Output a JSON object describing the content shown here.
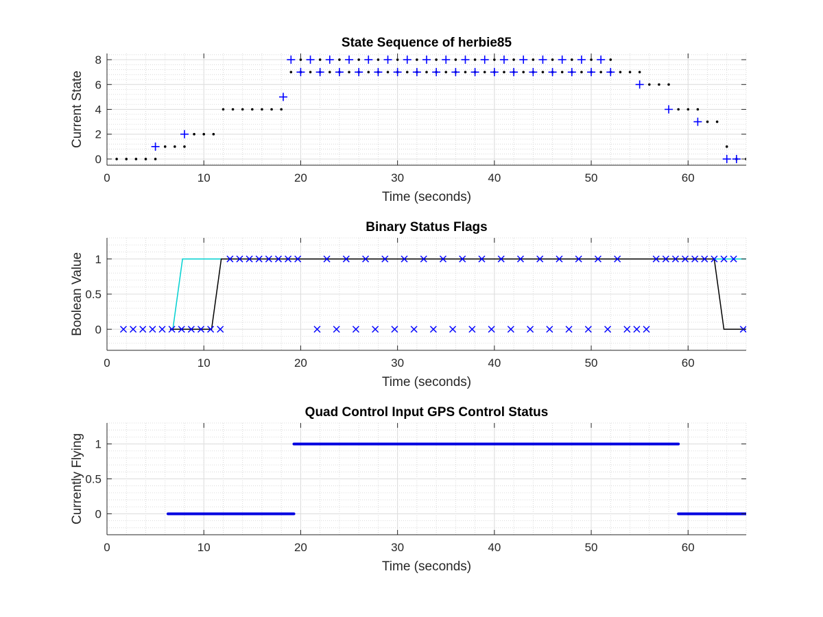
{
  "chart_data": [
    {
      "type": "scatter",
      "title": "State Sequence of herbie85",
      "xlabel": "Time (seconds)",
      "ylabel": "Current State",
      "xlim": [
        0,
        66
      ],
      "ylim": [
        -0.5,
        8.5
      ],
      "xticks": [
        0,
        10,
        20,
        30,
        40,
        50,
        60
      ],
      "yticks": [
        0,
        2,
        4,
        6,
        8
      ],
      "grid": true,
      "minor_grid": true,
      "series": [
        {
          "marker": "dot",
          "color": "#000000",
          "points": [
            [
              1,
              0
            ],
            [
              2,
              0
            ],
            [
              3,
              0
            ],
            [
              4,
              0
            ],
            [
              5,
              0
            ],
            [
              6,
              1
            ],
            [
              7,
              1
            ],
            [
              8,
              1
            ],
            [
              9,
              2
            ],
            [
              10,
              2
            ],
            [
              11,
              2
            ],
            [
              12,
              4
            ],
            [
              13,
              4
            ],
            [
              14,
              4
            ],
            [
              15,
              4
            ],
            [
              16,
              4
            ],
            [
              17,
              4
            ],
            [
              18,
              4
            ],
            [
              19,
              7
            ],
            [
              20,
              7
            ],
            [
              21,
              7
            ],
            [
              22,
              7
            ],
            [
              23,
              7
            ],
            [
              24,
              7
            ],
            [
              25,
              7
            ],
            [
              26,
              7
            ],
            [
              27,
              7
            ],
            [
              28,
              7
            ],
            [
              29,
              7
            ],
            [
              30,
              7
            ],
            [
              31,
              7
            ],
            [
              32,
              7
            ],
            [
              33,
              7
            ],
            [
              34,
              7
            ],
            [
              35,
              7
            ],
            [
              36,
              7
            ],
            [
              37,
              7
            ],
            [
              38,
              7
            ],
            [
              39,
              7
            ],
            [
              40,
              7
            ],
            [
              41,
              7
            ],
            [
              42,
              7
            ],
            [
              43,
              7
            ],
            [
              44,
              7
            ],
            [
              45,
              7
            ],
            [
              46,
              7
            ],
            [
              47,
              7
            ],
            [
              48,
              7
            ],
            [
              49,
              7
            ],
            [
              50,
              7
            ],
            [
              51,
              7
            ],
            [
              52,
              7
            ],
            [
              53,
              7
            ],
            [
              54,
              7
            ],
            [
              55,
              7
            ],
            [
              56,
              6
            ],
            [
              57,
              6
            ],
            [
              58,
              6
            ],
            [
              59,
              4
            ],
            [
              60,
              4
            ],
            [
              61,
              4
            ],
            [
              62,
              3
            ],
            [
              63,
              3
            ],
            [
              64,
              1
            ],
            [
              65,
              0
            ],
            [
              66,
              0
            ],
            [
              20,
              8
            ],
            [
              22,
              8
            ],
            [
              24,
              8
            ],
            [
              26,
              8
            ],
            [
              28,
              8
            ],
            [
              30,
              8
            ],
            [
              32,
              8
            ],
            [
              34,
              8
            ],
            [
              36,
              8
            ],
            [
              38,
              8
            ],
            [
              40,
              8
            ],
            [
              42,
              8
            ],
            [
              44,
              8
            ],
            [
              46,
              8
            ],
            [
              48,
              8
            ],
            [
              50,
              8
            ],
            [
              52,
              8
            ]
          ]
        },
        {
          "marker": "plus",
          "color": "#0000ff",
          "points": [
            [
              5,
              1
            ],
            [
              8,
              2
            ],
            [
              18.2,
              5
            ],
            [
              19,
              8
            ],
            [
              21,
              8
            ],
            [
              23,
              8
            ],
            [
              25,
              8
            ],
            [
              27,
              8
            ],
            [
              29,
              8
            ],
            [
              31,
              8
            ],
            [
              33,
              8
            ],
            [
              35,
              8
            ],
            [
              37,
              8
            ],
            [
              39,
              8
            ],
            [
              41,
              8
            ],
            [
              43,
              8
            ],
            [
              45,
              8
            ],
            [
              47,
              8
            ],
            [
              49,
              8
            ],
            [
              51,
              8
            ],
            [
              20,
              7
            ],
            [
              22,
              7
            ],
            [
              24,
              7
            ],
            [
              26,
              7
            ],
            [
              28,
              7
            ],
            [
              30,
              7
            ],
            [
              32,
              7
            ],
            [
              34,
              7
            ],
            [
              36,
              7
            ],
            [
              38,
              7
            ],
            [
              40,
              7
            ],
            [
              42,
              7
            ],
            [
              44,
              7
            ],
            [
              46,
              7
            ],
            [
              48,
              7
            ],
            [
              50,
              7
            ],
            [
              52,
              7
            ],
            [
              55,
              6
            ],
            [
              58,
              4
            ],
            [
              61,
              3
            ],
            [
              64,
              0
            ],
            [
              65,
              0
            ]
          ]
        }
      ]
    },
    {
      "type": "line",
      "title": "Binary Status Flags",
      "xlabel": "Time (seconds)",
      "ylabel": "Boolean Value",
      "xlim": [
        0,
        66
      ],
      "ylim": [
        -0.3,
        1.3
      ],
      "xticks": [
        0,
        10,
        20,
        30,
        40,
        50,
        60
      ],
      "yticks": [
        0,
        0.5,
        1
      ],
      "ytick_labels": [
        "0",
        "0.5",
        "1"
      ],
      "grid": true,
      "minor_grid": true,
      "series": [
        {
          "marker": "none",
          "color": "#00d0d0",
          "points": [
            [
              6.8,
              0
            ],
            [
              7.8,
              1
            ],
            [
              66,
              1
            ]
          ]
        },
        {
          "marker": "none",
          "color": "#000000",
          "points": [
            [
              6.5,
              0
            ],
            [
              10.8,
              0
            ],
            [
              11.8,
              1
            ],
            [
              62.7,
              1
            ],
            [
              63.7,
              0
            ],
            [
              66,
              0
            ]
          ]
        },
        {
          "marker": "x",
          "color": "#0000ff",
          "points": [
            [
              1.7,
              0
            ],
            [
              2.7,
              0
            ],
            [
              3.7,
              0
            ],
            [
              4.7,
              0
            ],
            [
              5.7,
              0
            ],
            [
              6.7,
              0
            ],
            [
              7.7,
              0
            ],
            [
              8.7,
              0
            ],
            [
              9.7,
              0
            ],
            [
              10.7,
              0
            ],
            [
              11.7,
              0
            ],
            [
              12.7,
              1
            ],
            [
              13.7,
              1
            ],
            [
              14.7,
              1
            ],
            [
              15.7,
              1
            ],
            [
              16.7,
              1
            ],
            [
              17.7,
              1
            ],
            [
              18.7,
              1
            ],
            [
              19.7,
              1
            ],
            [
              21.7,
              0
            ],
            [
              22.7,
              1
            ],
            [
              23.7,
              0
            ],
            [
              24.7,
              1
            ],
            [
              25.7,
              0
            ],
            [
              26.7,
              1
            ],
            [
              27.7,
              0
            ],
            [
              28.7,
              1
            ],
            [
              29.7,
              0
            ],
            [
              30.7,
              1
            ],
            [
              31.7,
              0
            ],
            [
              32.7,
              1
            ],
            [
              33.7,
              0
            ],
            [
              34.7,
              1
            ],
            [
              35.7,
              0
            ],
            [
              36.7,
              1
            ],
            [
              37.7,
              0
            ],
            [
              38.7,
              1
            ],
            [
              39.7,
              0
            ],
            [
              40.7,
              1
            ],
            [
              41.7,
              0
            ],
            [
              42.7,
              1
            ],
            [
              43.7,
              0
            ],
            [
              44.7,
              1
            ],
            [
              45.7,
              0
            ],
            [
              46.7,
              1
            ],
            [
              47.7,
              0
            ],
            [
              48.7,
              1
            ],
            [
              49.7,
              0
            ],
            [
              50.7,
              1
            ],
            [
              51.7,
              0
            ],
            [
              52.7,
              1
            ],
            [
              53.7,
              0
            ],
            [
              54.7,
              0
            ],
            [
              55.7,
              0
            ],
            [
              56.7,
              1
            ],
            [
              57.7,
              1
            ],
            [
              58.7,
              1
            ],
            [
              59.7,
              1
            ],
            [
              60.7,
              1
            ],
            [
              61.7,
              1
            ],
            [
              62.7,
              1
            ],
            [
              63.7,
              1
            ],
            [
              64.7,
              1
            ],
            [
              65.7,
              0
            ]
          ]
        }
      ]
    },
    {
      "type": "line",
      "title": "Quad Control Input GPS Control Status",
      "xlabel": "Time (seconds)",
      "ylabel": "Currently Flying",
      "xlim": [
        0,
        66
      ],
      "ylim": [
        -0.3,
        1.3
      ],
      "xticks": [
        0,
        10,
        20,
        30,
        40,
        50,
        60
      ],
      "yticks": [
        0,
        0.5,
        1
      ],
      "ytick_labels": [
        "0",
        "0.5",
        "1"
      ],
      "grid": true,
      "minor_grid": true,
      "series": [
        {
          "marker": "none",
          "color": "#0000e0",
          "thick": true,
          "segments": [
            [
              [
                6.3,
                0
              ],
              [
                19.3,
                0
              ]
            ],
            [
              [
                19.3,
                1
              ],
              [
                59,
                1
              ]
            ],
            [
              [
                59,
                0
              ],
              [
                66,
                0
              ]
            ]
          ]
        }
      ]
    }
  ]
}
